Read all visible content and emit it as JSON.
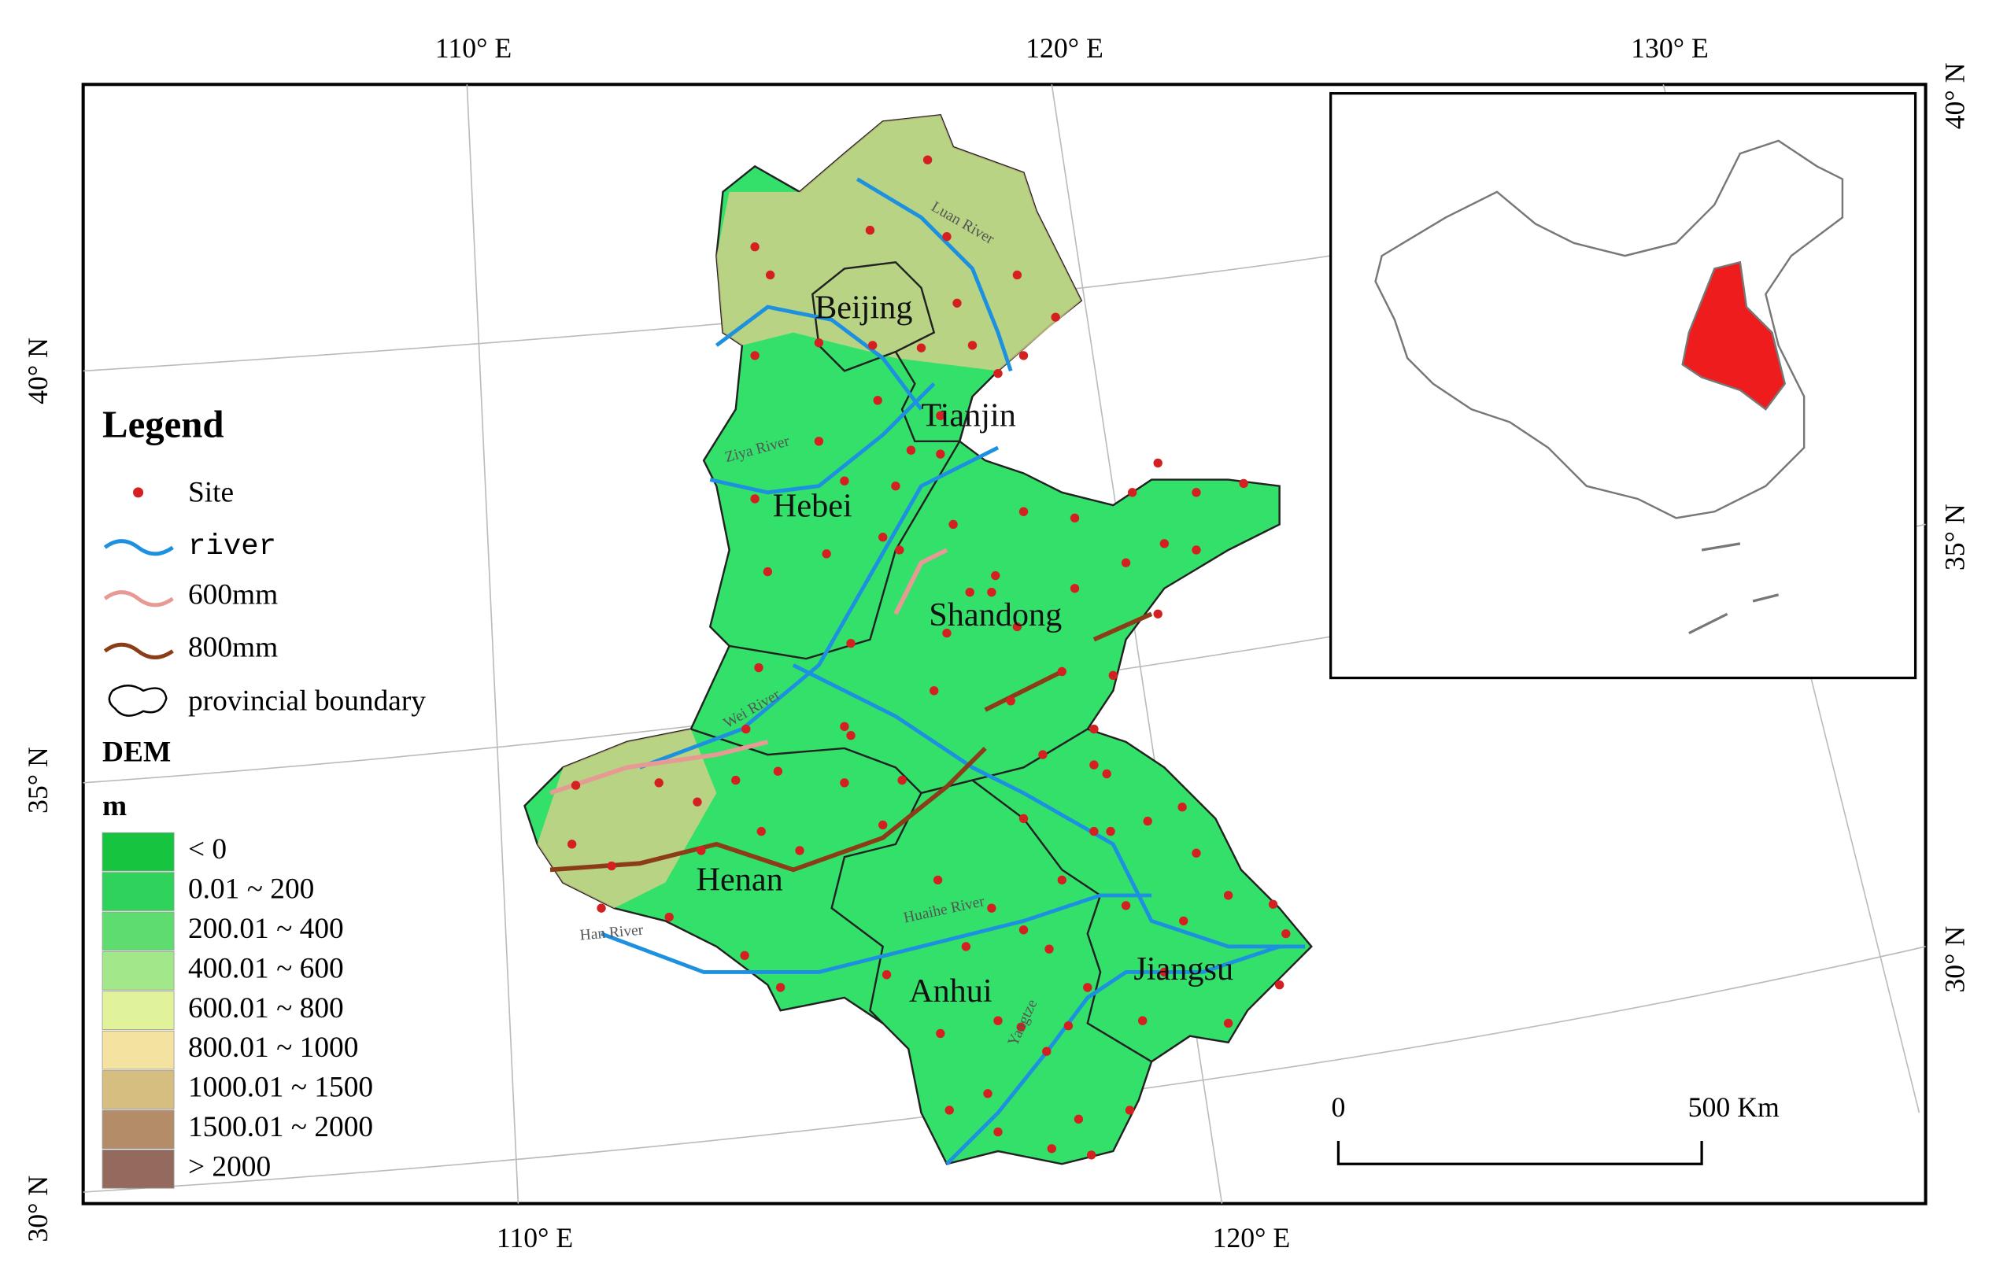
{
  "graticule": {
    "top": [
      "110° E",
      "120° E",
      "130° E"
    ],
    "bottom": [
      "110° E",
      "120° E"
    ],
    "left": [
      "40° N",
      "35° N",
      "30° N"
    ],
    "right": [
      "40° N",
      "35° N",
      "30° N"
    ]
  },
  "legend": {
    "title": "Legend",
    "items": [
      "Site",
      "river",
      "600mm",
      "800mm",
      "provincial boundary"
    ],
    "dem_title": "DEM",
    "dem_unit": "m",
    "dem_classes": [
      {
        "label": "< 0",
        "color": "#17c43f"
      },
      {
        "label": "0.01 ~ 200",
        "color": "#2fd35c"
      },
      {
        "label": "200.01 ~ 400",
        "color": "#5fdc6f"
      },
      {
        "label": "400.01 ~ 600",
        "color": "#a2e78a"
      },
      {
        "label": "600.01 ~ 800",
        "color": "#e1f39a"
      },
      {
        "label": "800.01 ~ 1000",
        "color": "#f4e3a0"
      },
      {
        "label": "1000.01 ~ 1500",
        "color": "#d6bd80"
      },
      {
        "label": "1500.01 ~ 2000",
        "color": "#b58c68"
      },
      {
        "label": "> 2000",
        "color": "#946a5e"
      }
    ]
  },
  "provinces": [
    "Beijing",
    "Tianjin",
    "Hebei",
    "Shandong",
    "Henan",
    "Anhui",
    "Jiangsu"
  ],
  "rivers": [
    "Luan River",
    "Ziya River",
    "Wei River",
    "Huaihe River",
    "Han River",
    "Yangtze"
  ],
  "scale_bar": {
    "labels": [
      "0",
      "500 Km"
    ]
  }
}
